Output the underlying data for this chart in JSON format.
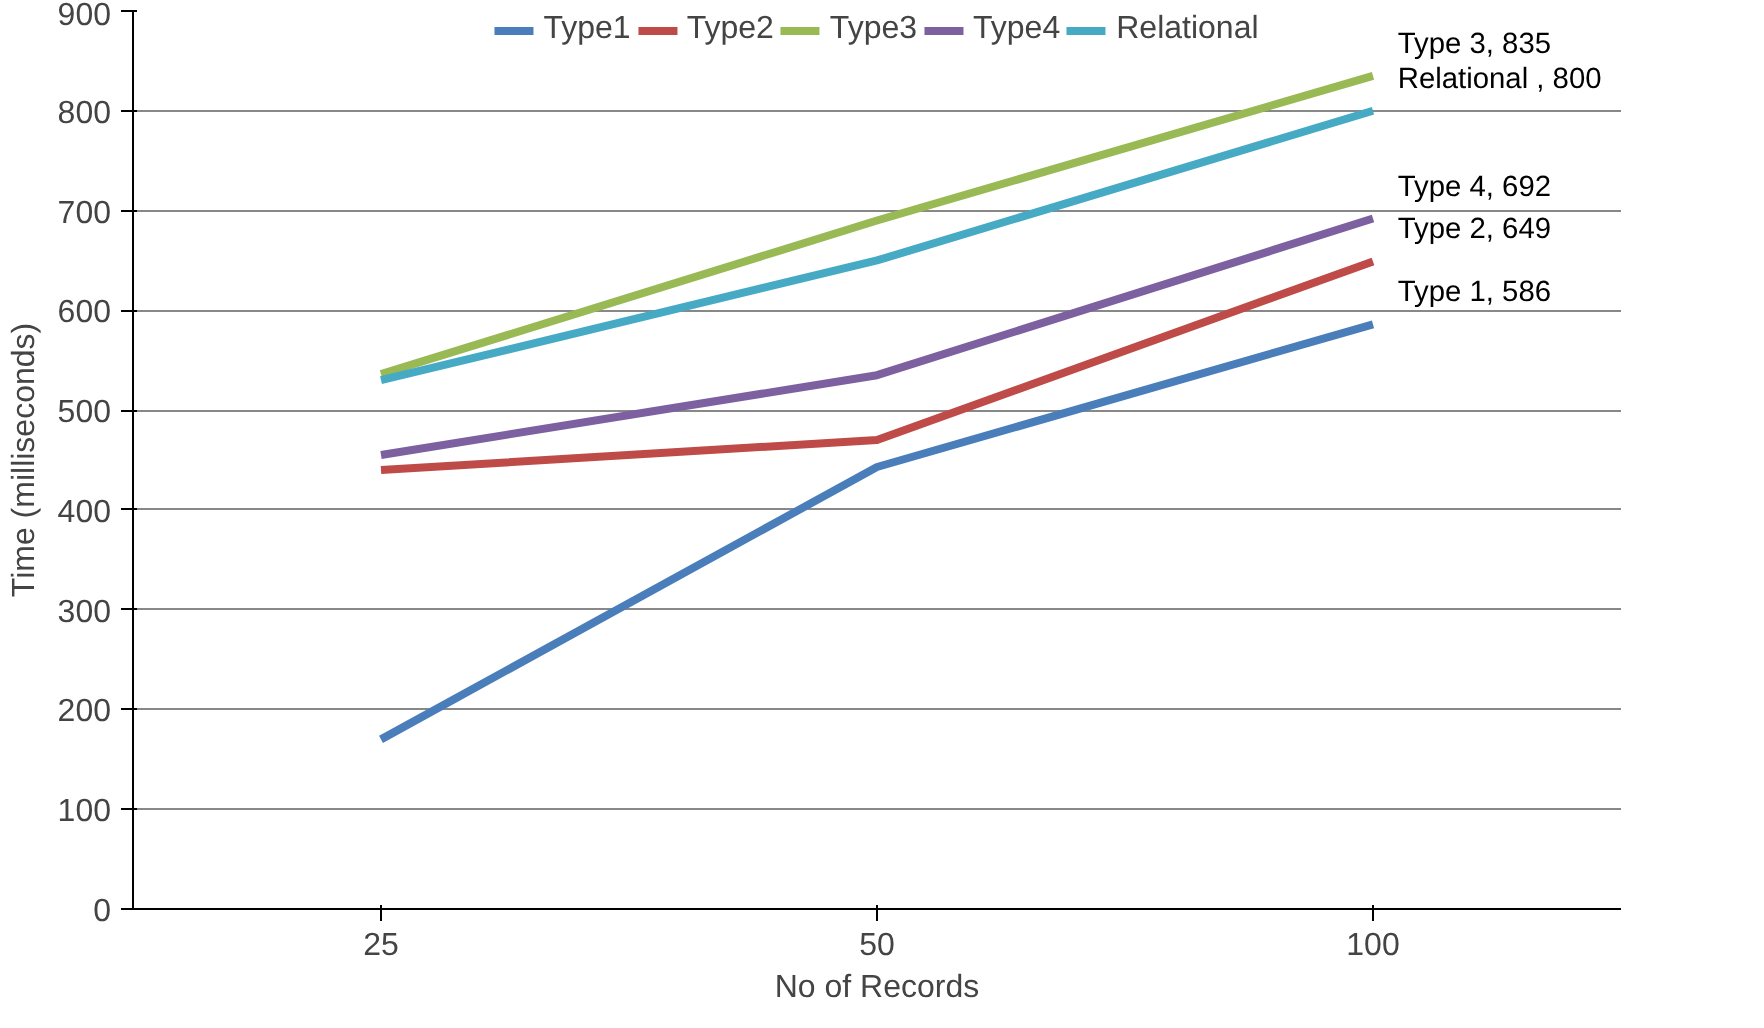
{
  "chart_data": {
    "type": "line",
    "xlabel": "No of Records",
    "ylabel": "Time (milliseconds)",
    "categories": [
      "25",
      "50",
      "100"
    ],
    "series": [
      {
        "name": "Type1",
        "color": "#4a7ebb",
        "values": [
          170,
          443,
          586
        ]
      },
      {
        "name": "Type2",
        "color": "#be4b48",
        "values": [
          440,
          470,
          649
        ]
      },
      {
        "name": "Type3",
        "color": "#98b954",
        "values": [
          536,
          690,
          835
        ]
      },
      {
        "name": "Type4",
        "color": "#7d60a0",
        "values": [
          455,
          535,
          692
        ]
      },
      {
        "name": "Relational",
        "color": "#46aac5",
        "values": [
          530,
          650,
          800
        ]
      }
    ],
    "ylim": [
      0,
      900
    ],
    "yticks": [
      0,
      100,
      200,
      300,
      400,
      500,
      600,
      700,
      800,
      900
    ],
    "grid": "y",
    "legend": "top",
    "marker": "none",
    "line_style": "solid",
    "annotations": [
      {
        "text": "Type 3, 835",
        "x": "100",
        "y": 835
      },
      {
        "text": "Relational , 800",
        "x": "100",
        "y": 800
      },
      {
        "text": "Type 4, 692",
        "x": "100",
        "y": 692
      },
      {
        "text": "Type 2, 649",
        "x": "100",
        "y": 649
      },
      {
        "text": "Type 1, 586",
        "x": "100",
        "y": 586
      }
    ]
  }
}
